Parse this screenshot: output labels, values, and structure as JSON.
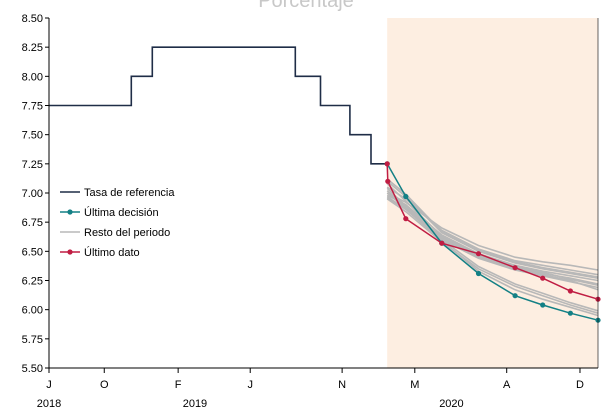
{
  "chart_data": {
    "type": "line",
    "title": "Porcentaje",
    "xlabel": "",
    "ylabel": "",
    "ylim": [
      5.5,
      8.5
    ],
    "y_ticks": [
      "5.50",
      "5.75",
      "6.00",
      "6.25",
      "6.50",
      "6.75",
      "7.00",
      "7.25",
      "7.50",
      "7.75",
      "8.00",
      "8.25",
      "8.50"
    ],
    "x_range": [
      "2018-07-01",
      "2020-12-31"
    ],
    "x_ticks": [
      {
        "date": "2018-07-01",
        "label": "J"
      },
      {
        "date": "2018-10-01",
        "label": "O"
      },
      {
        "date": "2019-02-01",
        "label": "F"
      },
      {
        "date": "2019-06-01",
        "label": "J"
      },
      {
        "date": "2019-11-01",
        "label": "N"
      },
      {
        "date": "2020-03-01",
        "label": "M"
      },
      {
        "date": "2020-08-01",
        "label": "A"
      },
      {
        "date": "2020-12-01",
        "label": "D"
      }
    ],
    "x_year_labels": [
      {
        "date": "2018-07-01",
        "label": "2018"
      },
      {
        "date": "2019-03-01",
        "label": "2019"
      },
      {
        "date": "2020-05-01",
        "label": "2020"
      }
    ],
    "forecast_shading": {
      "from": "2020-01-15",
      "to": "2020-12-31",
      "color": "#fdeee1"
    },
    "legend": {
      "position": "left",
      "entries": [
        {
          "label": "Tasa de referencia",
          "color": "#1f2d47",
          "marker": false
        },
        {
          "label": "Última decisión",
          "color": "#138085",
          "marker": true
        },
        {
          "label": "Resto del periodo",
          "color": "#b8b8b8",
          "marker": false
        },
        {
          "label": "Último dato",
          "color": "#c01d43",
          "marker": true
        }
      ]
    },
    "series": [
      {
        "name": "Tasa de referencia",
        "color": "#1f2d47",
        "step": true,
        "points": [
          [
            "2018-07-01",
            7.75
          ],
          [
            "2018-11-15",
            7.75
          ],
          [
            "2018-11-15",
            8.0
          ],
          [
            "2018-12-20",
            8.0
          ],
          [
            "2018-12-20",
            8.25
          ],
          [
            "2019-08-15",
            8.25
          ],
          [
            "2019-08-15",
            8.0
          ],
          [
            "2019-09-26",
            8.0
          ],
          [
            "2019-09-26",
            7.75
          ],
          [
            "2019-11-14",
            7.75
          ],
          [
            "2019-11-14",
            7.5
          ],
          [
            "2019-12-19",
            7.5
          ],
          [
            "2019-12-19",
            7.25
          ],
          [
            "2020-01-15",
            7.25
          ]
        ]
      },
      {
        "name": "Última decisión",
        "color": "#138085",
        "marker": true,
        "points": [
          [
            "2020-01-15",
            7.25
          ],
          [
            "2020-02-15",
            6.97
          ],
          [
            "2020-04-15",
            6.57
          ],
          [
            "2020-06-15",
            6.31
          ],
          [
            "2020-08-15",
            6.12
          ],
          [
            "2020-09-30",
            6.04
          ],
          [
            "2020-11-15",
            5.97
          ],
          [
            "2020-12-31",
            5.91
          ]
        ]
      },
      {
        "name": "Último dato",
        "color": "#c01d43",
        "marker": true,
        "points": [
          [
            "2020-01-15",
            7.25
          ],
          [
            "2020-01-16",
            7.1
          ],
          [
            "2020-02-15",
            6.78
          ],
          [
            "2020-04-15",
            6.57
          ],
          [
            "2020-06-15",
            6.48
          ],
          [
            "2020-08-15",
            6.36
          ],
          [
            "2020-09-30",
            6.27
          ],
          [
            "2020-11-15",
            6.16
          ],
          [
            "2020-12-31",
            6.09
          ]
        ]
      }
    ],
    "background_series": {
      "name": "Resto del periodo",
      "color": "#b8b8b8",
      "x": [
        "2020-01-15",
        "2020-02-15",
        "2020-04-15",
        "2020-06-15",
        "2020-08-15",
        "2020-09-30",
        "2020-11-15",
        "2020-12-31"
      ],
      "lines": [
        [
          7.0,
          6.92,
          6.7,
          6.55,
          6.45,
          6.41,
          6.38,
          6.34
        ],
        [
          7.05,
          6.95,
          6.68,
          6.52,
          6.42,
          6.38,
          6.34,
          6.3
        ],
        [
          7.1,
          6.97,
          6.66,
          6.5,
          6.4,
          6.35,
          6.31,
          6.27
        ],
        [
          6.98,
          6.9,
          6.64,
          6.48,
          6.38,
          6.33,
          6.29,
          6.25
        ],
        [
          7.02,
          6.88,
          6.62,
          6.46,
          6.36,
          6.31,
          6.27,
          6.22
        ],
        [
          6.96,
          6.86,
          6.6,
          6.44,
          6.34,
          6.29,
          6.24,
          6.19
        ],
        [
          7.08,
          6.93,
          6.63,
          6.47,
          6.37,
          6.32,
          6.26,
          6.21
        ],
        [
          7.04,
          6.89,
          6.61,
          6.45,
          6.35,
          6.3,
          6.25,
          6.17
        ],
        [
          6.95,
          6.84,
          6.58,
          6.35,
          6.2,
          6.12,
          6.04,
          5.97
        ],
        [
          6.97,
          6.86,
          6.59,
          6.33,
          6.17,
          6.09,
          6.02,
          5.95
        ],
        [
          7.0,
          6.87,
          6.6,
          6.37,
          6.22,
          6.14,
          6.06,
          5.99
        ],
        [
          7.12,
          6.99,
          6.67,
          6.51,
          6.41,
          6.36,
          6.32,
          6.28
        ]
      ]
    }
  }
}
